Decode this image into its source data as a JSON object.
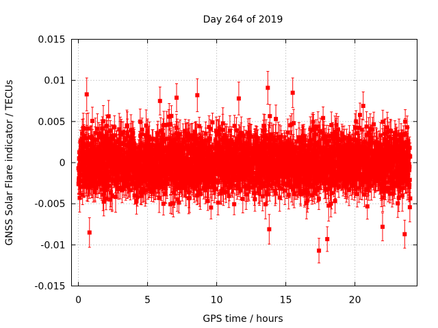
{
  "chart_data": {
    "type": "scatter",
    "title": "Day 264 of 2019",
    "xlabel": "GPS time / hours",
    "ylabel": "GNSS Solar Flare indicator / TECUs",
    "xlim": [
      -0.5,
      24.5
    ],
    "ylim": [
      -0.015,
      0.015
    ],
    "x_ticks": [
      0,
      5,
      10,
      15,
      20
    ],
    "x_tick_labels": [
      "0",
      "5",
      "10",
      "15",
      "20"
    ],
    "y_ticks": [
      -0.015,
      -0.01,
      -0.005,
      0,
      0.005,
      0.01,
      0.015
    ],
    "y_tick_labels": [
      "-0.015",
      "-0.01",
      "-0.005",
      "0",
      "0.005",
      "0.01",
      "0.015"
    ],
    "grid": true,
    "series": [
      {
        "name": "GNSS Solar Flare indicator",
        "color": "#ff0000",
        "marker": "filled-square",
        "error_bars": true,
        "sampling_interval_hours": 0.008333,
        "x_start": 0,
        "x_end": 24,
        "typical_value": 0,
        "typical_spread": 0.0035,
        "typical_error": 0.0015,
        "notable_points": [
          {
            "x": 0.6,
            "y": 0.0083,
            "err": 0.002
          },
          {
            "x": 0.8,
            "y": -0.0085,
            "err": 0.0018
          },
          {
            "x": 5.9,
            "y": 0.0075,
            "err": 0.0017
          },
          {
            "x": 7.1,
            "y": 0.0079,
            "err": 0.0017
          },
          {
            "x": 8.6,
            "y": 0.0082,
            "err": 0.002
          },
          {
            "x": 11.6,
            "y": 0.0078,
            "err": 0.002
          },
          {
            "x": 13.7,
            "y": 0.0091,
            "err": 0.002
          },
          {
            "x": 13.8,
            "y": -0.0081,
            "err": 0.0018
          },
          {
            "x": 15.5,
            "y": 0.0085,
            "err": 0.0018
          },
          {
            "x": 17.4,
            "y": -0.0107,
            "err": 0.0015
          },
          {
            "x": 18.0,
            "y": -0.0093,
            "err": 0.0015
          },
          {
            "x": 20.6,
            "y": 0.0069,
            "err": 0.0017
          },
          {
            "x": 22.0,
            "y": -0.0078,
            "err": 0.0017
          },
          {
            "x": 23.6,
            "y": -0.0087,
            "err": 0.0017
          }
        ]
      }
    ]
  }
}
